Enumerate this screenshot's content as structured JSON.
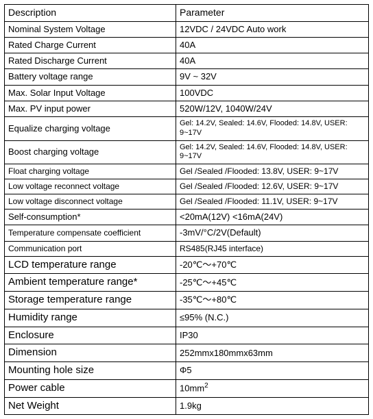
{
  "headers": {
    "col1": "Description",
    "col2": "Parameter"
  },
  "rows": [
    {
      "label": "Nominal System Voltage",
      "value": "12VDC / 24VDC Auto work",
      "cls": "",
      "vcls": ""
    },
    {
      "label": "Rated Charge Current",
      "value": "40A",
      "cls": "",
      "vcls": ""
    },
    {
      "label": "Rated Discharge Current",
      "value": "40A",
      "cls": "",
      "vcls": ""
    },
    {
      "label": "Battery voltage range",
      "value": "9V ~ 32V",
      "cls": "",
      "vcls": ""
    },
    {
      "label": "Max. Solar Input Voltage",
      "value": "100VDC",
      "cls": "",
      "vcls": ""
    },
    {
      "label": "Max. PV input power",
      "value": "520W/12V, 1040W/24V",
      "cls": "",
      "vcls": ""
    },
    {
      "label": "Equalize charging voltage",
      "value": "Gel: 14.2V, Sealed: 14.6V, Flooded: 14.8V, USER: 9~17V",
      "cls": "",
      "vcls": "xsm"
    },
    {
      "label": "Boost charging voltage",
      "value": "Gel: 14.2V, Sealed: 14.6V, Flooded: 14.8V, USER: 9~17V",
      "cls": "",
      "vcls": "xsm"
    },
    {
      "label": "Float charging voltage",
      "value": "Gel /Sealed /Flooded: 13.8V, USER: 9~17V",
      "cls": "sm",
      "vcls": "sm"
    },
    {
      "label": "Low voltage reconnect voltage",
      "value": "Gel /Sealed /Flooded: 12.6V, USER: 9~17V",
      "cls": "sm",
      "vcls": "sm"
    },
    {
      "label": "Low voltage disconnect voltage",
      "value": "Gel /Sealed /Flooded: 11.1V, USER: 9~17V",
      "cls": "sm",
      "vcls": "sm"
    },
    {
      "label": "Self-consumption*",
      "value": "<20mA(12V) <16mA(24V)",
      "cls": "",
      "vcls": ""
    },
    {
      "label": "Temperature compensate coefficient",
      "value": "-3mV/°C/2V(Default)",
      "cls": "sm",
      "vcls": ""
    },
    {
      "label": "Communication port",
      "value": "RS485(RJ45 interface)",
      "cls": "sm",
      "vcls": "sm"
    },
    {
      "label": "LCD temperature range",
      "value": "-20℃～+70℃",
      "cls": "lg",
      "vcls": ""
    },
    {
      "label": "Ambient temperature range*",
      "value": "-25℃～+45℃",
      "cls": "lg",
      "vcls": ""
    },
    {
      "label": "Storage temperature range",
      "value": "-35℃～+80℃",
      "cls": "lg",
      "vcls": ""
    },
    {
      "label": "Humidity range",
      "value": "≤95% (N.C.)",
      "cls": "lg",
      "vcls": ""
    },
    {
      "label": "Enclosure",
      "value": "IP30",
      "cls": "lg",
      "vcls": ""
    },
    {
      "label": "Dimension",
      "value": "252mmx180mmx63mm",
      "cls": "lg",
      "vcls": ""
    },
    {
      "label": "Mounting hole size",
      "value": "Φ5",
      "cls": "lg",
      "vcls": ""
    }
  ],
  "power_cable": {
    "label": "Power cable",
    "value_base": "10mm",
    "value_sup": "2"
  },
  "net_weight": {
    "label": "Net Weight",
    "value": "1.9kg"
  }
}
